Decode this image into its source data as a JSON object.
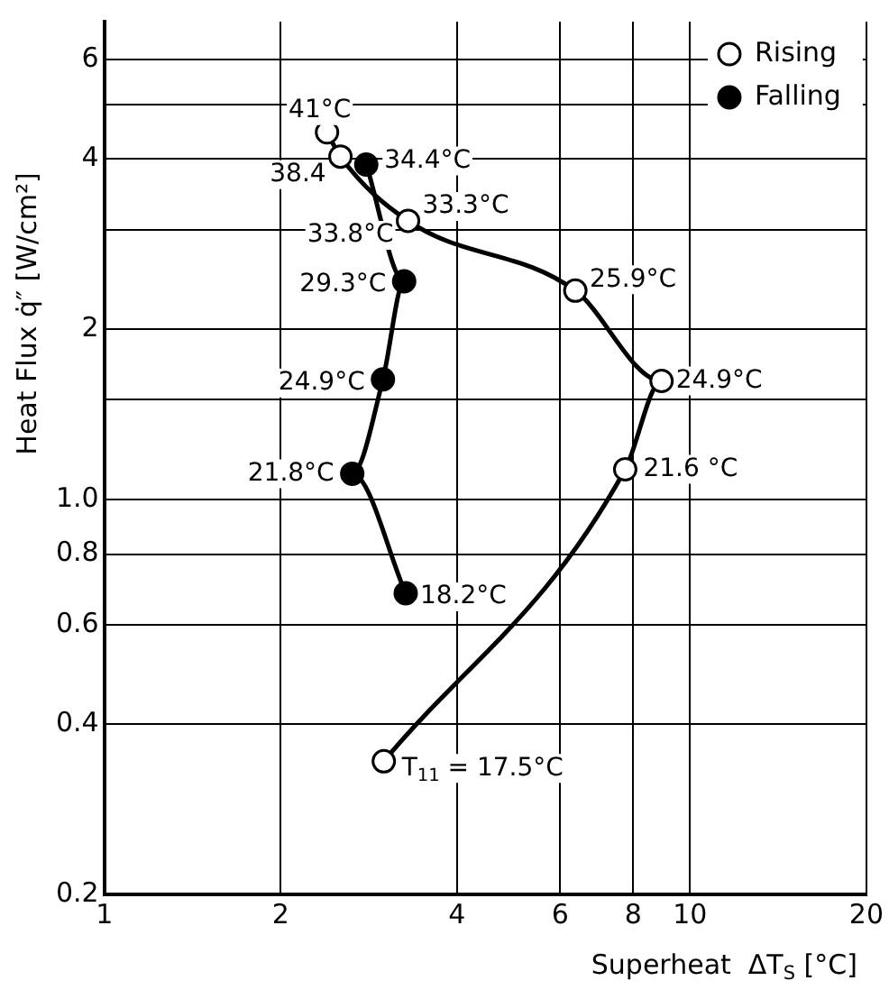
{
  "chart_data": {
    "type": "line",
    "xlabel": "Superheat  ΔT$_{S}$ [°C]",
    "ylabel": "Heat Flux q̇″ [W/cm²]",
    "log": "xy",
    "xlim": [
      1,
      20
    ],
    "ylim": [
      0.2,
      7
    ],
    "xticks": [
      1,
      2,
      4,
      6,
      8,
      10,
      20
    ],
    "yticks": [
      0.2,
      0.4,
      0.6,
      0.8,
      {
        "value": 1,
        "label": "1.0"
      },
      {
        "value": 1.5,
        "label": null
      },
      2,
      {
        "value": 3,
        "label": null
      },
      4,
      {
        "value": 5,
        "label": null
      },
      6
    ],
    "grid": true,
    "legend": "top right",
    "marker": "circle",
    "series": [
      {
        "name": "Rising",
        "color": "#ffffff",
        "x": [
          3.0,
          7.75,
          8.94,
          6.37,
          3.3,
          2.53,
          2.4
        ],
        "values": [
          0.344,
          1.13,
          1.62,
          2.34,
          3.11,
          4.04,
          4.46
        ]
      },
      {
        "name": "Falling",
        "color": "#000000",
        "x": [
          2.8,
          3.25,
          2.99,
          2.65,
          3.27
        ],
        "values": [
          3.91,
          2.43,
          1.63,
          1.11,
          0.682
        ]
      }
    ],
    "annotations": [
      {
        "text": "T$_{11}$ = 17.5°C",
        "x": 3.0,
        "y": 0.344
      },
      {
        "text": "21.6 °C",
        "x": 7.75,
        "y": 1.13
      },
      {
        "text": "24.9°C",
        "x": 8.94,
        "y": 1.62
      },
      {
        "text": "25.9°C",
        "x": 6.37,
        "y": 2.34
      },
      {
        "text": "33.3°C",
        "x": 3.3,
        "y": 3.11
      },
      {
        "text": "38.4",
        "x": 2.53,
        "y": 4.04
      },
      {
        "text": "41°C",
        "x": 2.4,
        "y": 4.46
      },
      {
        "text": "34.4°C",
        "x": 2.8,
        "y": 3.91
      },
      {
        "text": "33.8°C",
        "x": 3.3,
        "y": 3.11
      },
      {
        "text": "29.3°C",
        "x": 3.25,
        "y": 2.43
      },
      {
        "text": "24.9°C",
        "x": 2.99,
        "y": 1.63
      },
      {
        "text": "21.8°C",
        "x": 2.65,
        "y": 1.11
      },
      {
        "text": "18.2°C",
        "x": 3.27,
        "y": 0.682
      }
    ]
  }
}
